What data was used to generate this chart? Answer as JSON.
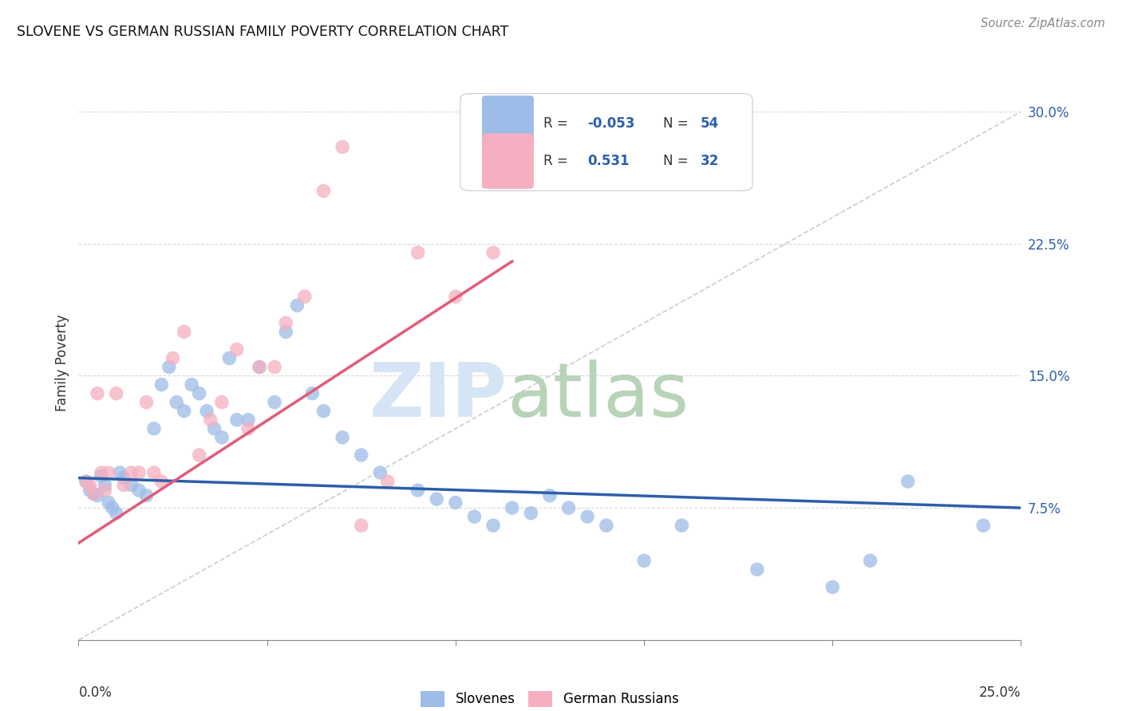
{
  "title": "SLOVENE VS GERMAN RUSSIAN FAMILY POVERTY CORRELATION CHART",
  "source": "Source: ZipAtlas.com",
  "ylabel": "Family Poverty",
  "y_ticks": [
    0.075,
    0.15,
    0.225,
    0.3
  ],
  "y_tick_labels": [
    "7.5%",
    "15.0%",
    "22.5%",
    "30.0%"
  ],
  "x_min": 0.0,
  "x_max": 0.25,
  "y_min": 0.0,
  "y_max": 0.315,
  "slovene_color": "#9dbce8",
  "german_russian_color": "#f5afc0",
  "slovene_line_color": "#2b5faa",
  "german_russian_line_color": "#e05c7a",
  "diagonal_color": "#c0c0c0",
  "slovene_R": -0.053,
  "slovene_N": 54,
  "german_russian_R": 0.531,
  "german_russian_N": 32,
  "legend_label_slovene": "Slovenes",
  "legend_label_german": "German Russians",
  "slovene_x": [
    0.002,
    0.003,
    0.004,
    0.005,
    0.006,
    0.007,
    0.008,
    0.009,
    0.01,
    0.011,
    0.012,
    0.014,
    0.016,
    0.018,
    0.02,
    0.022,
    0.024,
    0.026,
    0.028,
    0.03,
    0.032,
    0.034,
    0.036,
    0.038,
    0.04,
    0.042,
    0.045,
    0.048,
    0.052,
    0.055,
    0.058,
    0.062,
    0.065,
    0.07,
    0.075,
    0.08,
    0.09,
    0.095,
    0.1,
    0.105,
    0.11,
    0.115,
    0.12,
    0.125,
    0.13,
    0.135,
    0.14,
    0.15,
    0.16,
    0.18,
    0.2,
    0.21,
    0.22,
    0.24
  ],
  "slovene_y": [
    0.09,
    0.085,
    0.083,
    0.082,
    0.093,
    0.088,
    0.078,
    0.075,
    0.072,
    0.095,
    0.092,
    0.088,
    0.085,
    0.082,
    0.12,
    0.145,
    0.155,
    0.135,
    0.13,
    0.145,
    0.14,
    0.13,
    0.12,
    0.115,
    0.16,
    0.125,
    0.125,
    0.155,
    0.135,
    0.175,
    0.19,
    0.14,
    0.13,
    0.115,
    0.105,
    0.095,
    0.085,
    0.08,
    0.078,
    0.07,
    0.065,
    0.075,
    0.072,
    0.082,
    0.075,
    0.07,
    0.065,
    0.045,
    0.065,
    0.04,
    0.03,
    0.045,
    0.09,
    0.065
  ],
  "german_x": [
    0.002,
    0.003,
    0.004,
    0.005,
    0.006,
    0.007,
    0.008,
    0.01,
    0.012,
    0.014,
    0.016,
    0.018,
    0.02,
    0.022,
    0.025,
    0.028,
    0.032,
    0.035,
    0.038,
    0.042,
    0.045,
    0.048,
    0.052,
    0.055,
    0.06,
    0.065,
    0.07,
    0.075,
    0.082,
    0.09,
    0.1,
    0.11
  ],
  "german_y": [
    0.09,
    0.088,
    0.083,
    0.14,
    0.095,
    0.085,
    0.095,
    0.14,
    0.088,
    0.095,
    0.095,
    0.135,
    0.095,
    0.09,
    0.16,
    0.175,
    0.105,
    0.125,
    0.135,
    0.165,
    0.12,
    0.155,
    0.155,
    0.18,
    0.195,
    0.255,
    0.28,
    0.065,
    0.09,
    0.22,
    0.195,
    0.22
  ],
  "grid_color": "#d8d8d8",
  "background_color": "#ffffff",
  "slovene_line_x0": 0.0,
  "slovene_line_x1": 0.25,
  "slovene_line_y0": 0.092,
  "slovene_line_y1": 0.075,
  "german_line_x0": 0.0,
  "german_line_x1": 0.115,
  "german_line_y0": 0.055,
  "german_line_y1": 0.215
}
